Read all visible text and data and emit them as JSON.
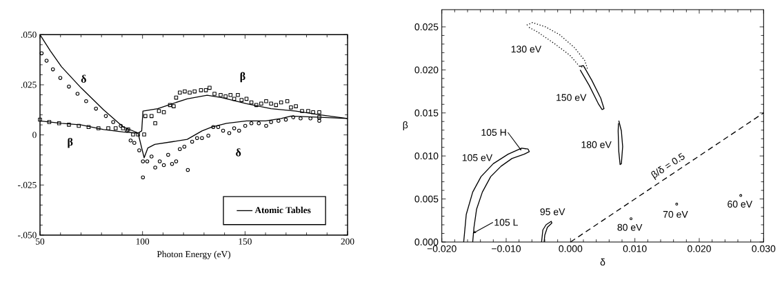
{
  "chart_data": [
    {
      "type": "line",
      "xlabel": "Photon Energy (eV)",
      "xlim": [
        50,
        200
      ],
      "ylim": [
        -0.05,
        0.05
      ],
      "xticks": [
        50,
        100,
        150,
        200
      ],
      "yticks": [
        {
          "value": -0.05,
          "label": "-.050"
        },
        {
          "value": -0.025,
          "label": "-.025"
        },
        {
          "value": 0,
          "label": "0"
        },
        {
          "value": 0.025,
          "label": ".025"
        },
        {
          "value": 0.05,
          "label": ".050"
        }
      ],
      "legend": "bottom right",
      "annotations": [
        "δ",
        "β",
        "β",
        "δ"
      ],
      "series": [
        {
          "type": "scatter",
          "marker": "square",
          "color": "#000000",
          "x": [
            50,
            54.5,
            59.3,
            64.1,
            68.9,
            73.7,
            78.5,
            83.3,
            86.9,
            90.5,
            93,
            95.4,
            97.8,
            100.8,
            101.4,
            104.4,
            106.2,
            108,
            110.4,
            113.4,
            115.2,
            116.4,
            118.2,
            120.6,
            123,
            125.4,
            128.5,
            130.9,
            132.7,
            135.1,
            138.1,
            140.5,
            142.9,
            144.7,
            146.5,
            148.3,
            150.7,
            153.1,
            155.5,
            157.9,
            160.3,
            162.7,
            165.1,
            167.6,
            170.6,
            172.4,
            174.8,
            177.8,
            180.8,
            183.2,
            186.2,
            186.2
          ],
          "values": [
            0.0076,
            0.0064,
            0.0058,
            0.0051,
            0.0045,
            0.0039,
            0.0033,
            0.0033,
            0.0033,
            0.0033,
            0.0027,
            0.0002,
            0.0002,
            0.0002,
            0.0094,
            0.0094,
            0.0058,
            0.0119,
            0.0113,
            0.0149,
            0.0143,
            0.0186,
            0.0211,
            0.0217,
            0.0211,
            0.0217,
            0.0223,
            0.0223,
            0.0235,
            0.0205,
            0.0199,
            0.0192,
            0.0199,
            0.018,
            0.0199,
            0.0174,
            0.018,
            0.0162,
            0.0149,
            0.0156,
            0.0168,
            0.0156,
            0.0149,
            0.0162,
            0.0168,
            0.0137,
            0.0143,
            0.0119,
            0.0119,
            0.0113,
            0.0113,
            0.0088
          ]
        },
        {
          "type": "scatter",
          "marker": "circle",
          "color": "#000000",
          "x": [
            50.8,
            53.2,
            56.3,
            59.9,
            64.1,
            68.3,
            72.5,
            77.3,
            82.1,
            85.7,
            89.4,
            92.4,
            94.2,
            96,
            98.4,
            100.2,
            100.2,
            102.3,
            104.4,
            106.2,
            108.4,
            110.4,
            112.5,
            114.4,
            116.4,
            118.2,
            120.4,
            122.1,
            124.2,
            126.6,
            129,
            132.1,
            134.5,
            136.9,
            139.3,
            142.3,
            144.7,
            147.1,
            150.1,
            153.1,
            156.7,
            160.3,
            162.7,
            166.3,
            169.9,
            173.5,
            177.1,
            181.9,
            186.2
          ],
          "values": [
            0.0407,
            0.037,
            0.0327,
            0.0284,
            0.0241,
            0.0205,
            0.0168,
            0.0131,
            0.0094,
            0.0064,
            0.0045,
            0.0021,
            -0.0028,
            -0.004,
            -0.0077,
            -0.0132,
            -0.0212,
            -0.0132,
            -0.0108,
            -0.0163,
            -0.0132,
            -0.0151,
            -0.0099,
            -0.0145,
            -0.0132,
            -0.0071,
            -0.0059,
            -0.0175,
            -0.0034,
            -0.0016,
            -0.0016,
            -0.0004,
            0.0039,
            0.0039,
            0.0021,
            0.0009,
            0.0033,
            0.0021,
            0.0045,
            0.0058,
            0.0058,
            0.0045,
            0.0064,
            0.007,
            0.0076,
            0.0088,
            0.0082,
            0.0082,
            0.007
          ]
        },
        {
          "name": "Atomic Tables",
          "marker": "none",
          "color": "#000000",
          "x": [
            50,
            55,
            60.5,
            70,
            81,
            90.5,
            97.8,
            99.6,
            100.8,
            102.6,
            106,
            114.6,
            121.8,
            129,
            133.9,
            141,
            150.7,
            160,
            167.6,
            172.4,
            186.8,
            200
          ],
          "values": [
            0.05,
            0.042,
            0.034,
            0.0235,
            0.0125,
            0.004,
            0.001,
            -0.0065,
            -0.0114,
            -0.0065,
            -0.0047,
            -0.0034,
            -0.0022,
            0.002,
            0.004,
            0.0058,
            0.007,
            0.007,
            0.0082,
            0.0094,
            0.0088,
            0.0082
          ]
        },
        {
          "marker": "none",
          "color": "#000000",
          "x": [
            50,
            60.5,
            70,
            81,
            90.5,
            97.8,
            99.6,
            100.2,
            107.4,
            114.6,
            121.8,
            131.5,
            138.7,
            150.7,
            162.7,
            174.8,
            186.8,
            200
          ],
          "values": [
            0.007,
            0.0058,
            0.005,
            0.0027,
            0.0015,
            0.0009,
            0.002,
            0.0119,
            0.0131,
            0.0156,
            0.018,
            0.0198,
            0.0186,
            0.0156,
            0.0131,
            0.0119,
            0.01,
            0.0082
          ]
        }
      ]
    },
    {
      "type": "line",
      "xlabel": "δ",
      "ylabel": "β",
      "xlim": [
        -0.02,
        0.03
      ],
      "ylim": [
        0,
        0.027
      ],
      "xticks": [
        {
          "value": -0.02,
          "label": "−0.020"
        },
        {
          "value": -0.01,
          "label": "−0.010"
        },
        {
          "value": 0,
          "label": "0.000"
        },
        {
          "value": 0.01,
          "label": "0.010"
        },
        {
          "value": 0.02,
          "label": "0.020"
        },
        {
          "value": 0.03,
          "label": "0.030"
        }
      ],
      "yticks": [
        {
          "value": 0,
          "label": "0.000"
        },
        {
          "value": 0.005,
          "label": "0.005"
        },
        {
          "value": 0.01,
          "label": "0.010"
        },
        {
          "value": 0.015,
          "label": "0.015"
        },
        {
          "value": 0.02,
          "label": "0.020"
        },
        {
          "value": 0.025,
          "label": "0.025"
        }
      ],
      "annotations": [
        "130 eV",
        "150 eV",
        "180 eV",
        {
          "text": "105 H",
          "x": -0.0076,
          "y": 0.0106
        },
        "105 eV",
        {
          "text": "105 L",
          "x": -0.0152,
          "y": 0.001
        },
        "95 eV",
        "80 eV",
        "70 eV",
        "60 eV",
        "β/δ = 0.5"
      ],
      "series": [
        {
          "line_style": "solid",
          "color": "#000000",
          "x": [
            -0.0166,
            -0.0162,
            -0.0152,
            -0.0139,
            -0.012,
            -0.0097,
            -0.0076,
            -0.0066,
            -0.0064,
            -0.0072,
            -0.0091,
            -0.0108,
            -0.0124,
            -0.0137,
            -0.0146,
            -0.015,
            -0.0152
          ],
          "values": [
            0,
            0.0032,
            0.0058,
            0.0076,
            0.0091,
            0.0102,
            0.0109,
            0.0108,
            0.0105,
            0.0102,
            0.0097,
            0.0088,
            0.0076,
            0.0058,
            0.0038,
            0.0017,
            0
          ]
        },
        {
          "line_style": "solid",
          "color": "#000000",
          "x": [
            -0.0045,
            -0.0043,
            -0.0038,
            -0.003,
            -0.0029,
            -0.0036,
            -0.004,
            -0.0041
          ],
          "values": [
            0,
            0.0014,
            0.002,
            0.0024,
            0.0022,
            0.0017,
            0.0008,
            0
          ]
        },
        {
          "line_style": "solid",
          "color": "#000000",
          "x": [
            0.0014,
            0.002,
            0.0033,
            0.0047,
            0.0052,
            0.0049,
            0.0043,
            0.0029,
            0.0015
          ],
          "values": [
            0.0204,
            0.0205,
            0.0188,
            0.0167,
            0.0155,
            0.0154,
            0.0161,
            0.0182,
            0.02
          ]
        },
        {
          "line_style": "dotted",
          "color": "#000000",
          "x": [
            -0.0068,
            -0.0059,
            -0.0039,
            -0.0017,
            0.0006,
            0.0022,
            0.0026,
            0.0014,
            -0.0001,
            -0.0024,
            -0.0051,
            -0.0066
          ],
          "values": [
            0.0252,
            0.0255,
            0.025,
            0.0241,
            0.0226,
            0.0211,
            0.0202,
            0.0204,
            0.0217,
            0.023,
            0.0244,
            0.025
          ]
        },
        {
          "line_style": "solid",
          "color": "#000000",
          "x": [
            0.0075,
            0.0079,
            0.0081,
            0.0079,
            0.0077,
            0.0075,
            0.0074,
            0.00745
          ],
          "values": [
            0.0141,
            0.0129,
            0.0111,
            0.0091,
            0.009,
            0.0105,
            0.0129,
            0.0138
          ]
        },
        {
          "type": "scatter",
          "marker": "circle",
          "color": "#000000",
          "x": [
            0.0094,
            0.0165,
            0.02645
          ],
          "values": [
            0.0027,
            0.0044,
            0.0054
          ]
        },
        {
          "line_style": "dashed",
          "color": "#000000",
          "x": [
            0,
            0.03
          ],
          "values": [
            0,
            0.015
          ]
        }
      ]
    }
  ]
}
